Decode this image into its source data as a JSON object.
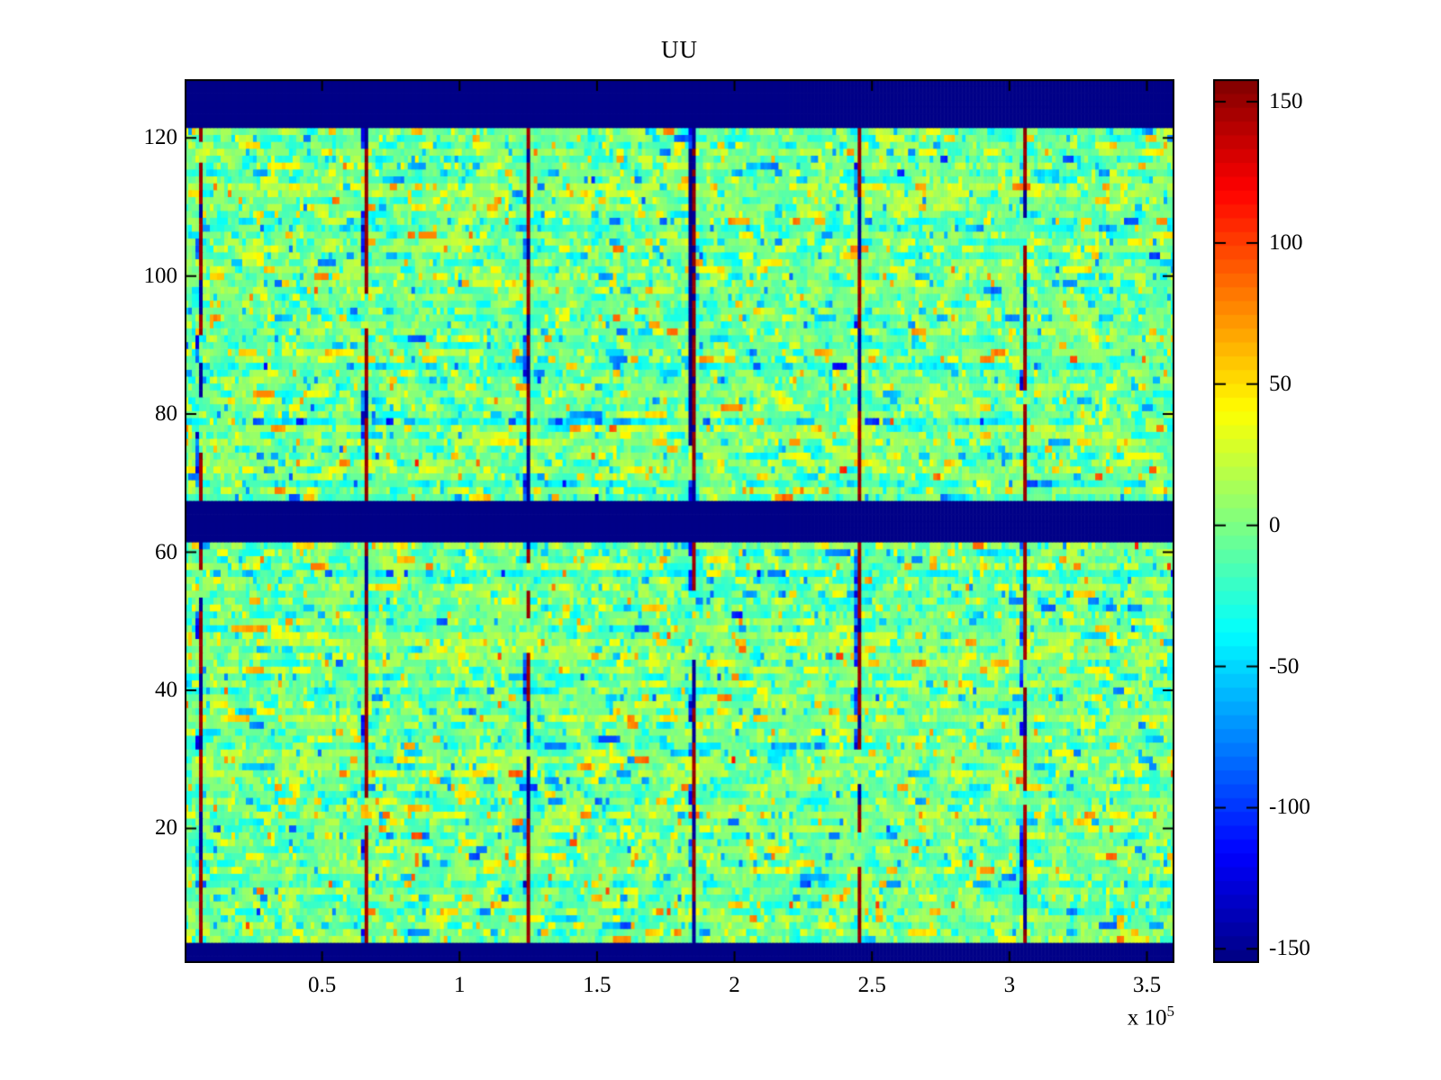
{
  "figure": {
    "background": "#ffffff"
  },
  "chart_data": {
    "type": "heatmap",
    "title": "UU",
    "x_axis": {
      "range": [
        0,
        360000
      ],
      "ticks": [
        50000,
        100000,
        150000,
        200000,
        250000,
        300000,
        350000
      ],
      "tick_labels": [
        "0.5",
        "1",
        "1.5",
        "2",
        "2.5",
        "3",
        "3.5"
      ],
      "exponent_label": "x 10",
      "exponent": "5"
    },
    "y_axis": {
      "range": [
        0.5,
        128.5
      ],
      "ticks": [
        20,
        40,
        60,
        80,
        100,
        120
      ],
      "tick_labels": [
        "20",
        "40",
        "60",
        "80",
        "100",
        "120"
      ]
    },
    "colorbar": {
      "vmin": -155,
      "vmax": 158,
      "ticks": [
        150,
        100,
        50,
        0,
        -50,
        -100,
        -150
      ],
      "tick_labels": [
        "150",
        "100",
        "50",
        "0",
        "-50",
        "-100",
        "-150"
      ],
      "colormap": "jet",
      "n_levels": 64
    },
    "grid": {
      "rows": 128,
      "cols": 275
    },
    "solid_bands": [
      {
        "rows": [
          1,
          3
        ],
        "value": -155
      },
      {
        "rows": [
          62,
          67
        ],
        "value": -155
      },
      {
        "rows": [
          122,
          128
        ],
        "value": -155
      }
    ],
    "stripes": {
      "x_positions": [
        5000,
        65000,
        125000,
        185000,
        245000,
        305000
      ],
      "high_value": 150,
      "low_value": -150,
      "special_stripe_index": 3,
      "special_rows": [
        76,
        118
      ]
    },
    "noise": {
      "mean": 0,
      "std": 17,
      "spike_prob": 0.16,
      "spike_scale": 45,
      "row_bias_std": 5,
      "h_corr": 0.45
    },
    "seed": 42,
    "colors": {
      "band_navy": "#000080",
      "stripe_dark_red": "#990000",
      "near_zero_green": "#7aff85"
    }
  }
}
